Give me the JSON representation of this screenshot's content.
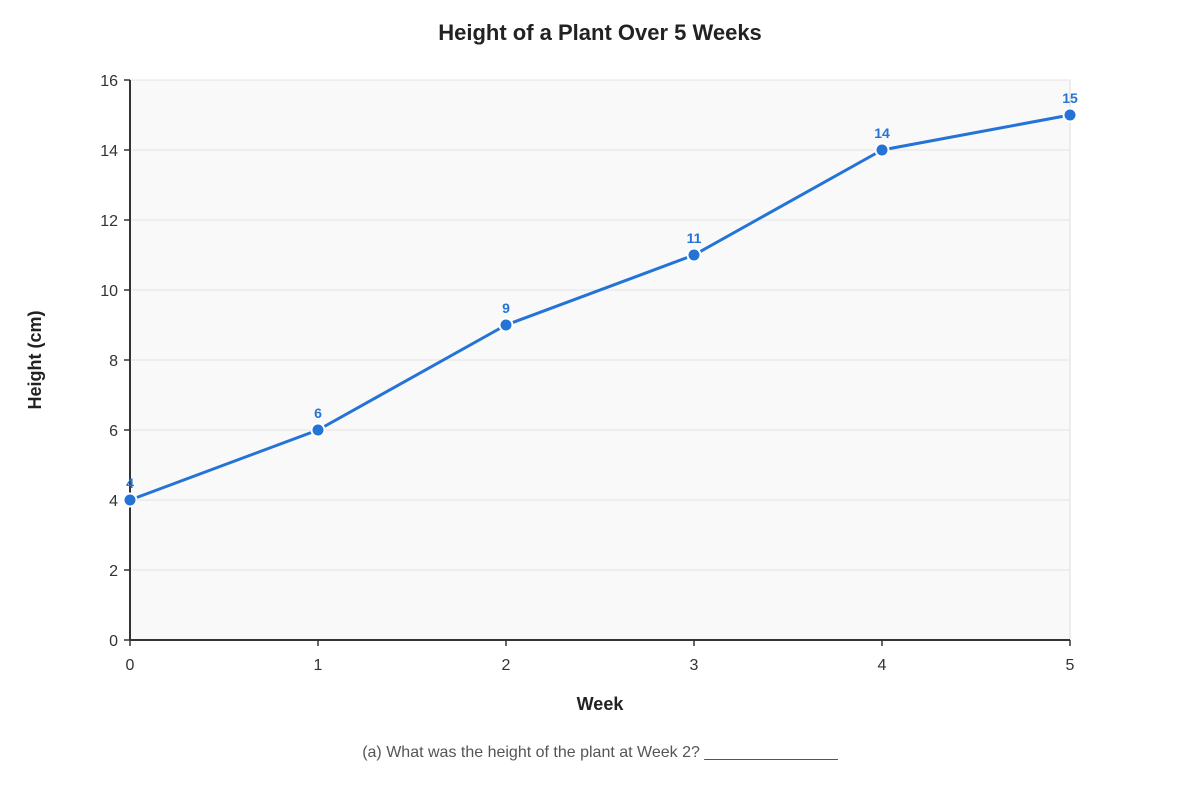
{
  "chart_data": {
    "type": "line",
    "title": "Height of a Plant Over 5 Weeks",
    "xlabel": "Week",
    "ylabel": "Height (cm)",
    "x": [
      0,
      1,
      2,
      3,
      4,
      5
    ],
    "series": [
      {
        "values": [
          4,
          6,
          9,
          11,
          14,
          15
        ],
        "color": "#2473d6"
      }
    ],
    "xlim": [
      0,
      5
    ],
    "ylim": [
      0,
      16
    ],
    "xticks": [
      0,
      1,
      2,
      3,
      4,
      5
    ],
    "yticks": [
      0,
      2,
      4,
      6,
      8,
      10,
      12,
      14,
      16
    ],
    "grid": true,
    "data_labels": true,
    "plot_background": "#f9f9f9",
    "grid_color": "#e4e4e4",
    "axis_color": "#333333"
  },
  "question": {
    "text": "(a) What was the height of the plant at Week 2? _______________"
  }
}
